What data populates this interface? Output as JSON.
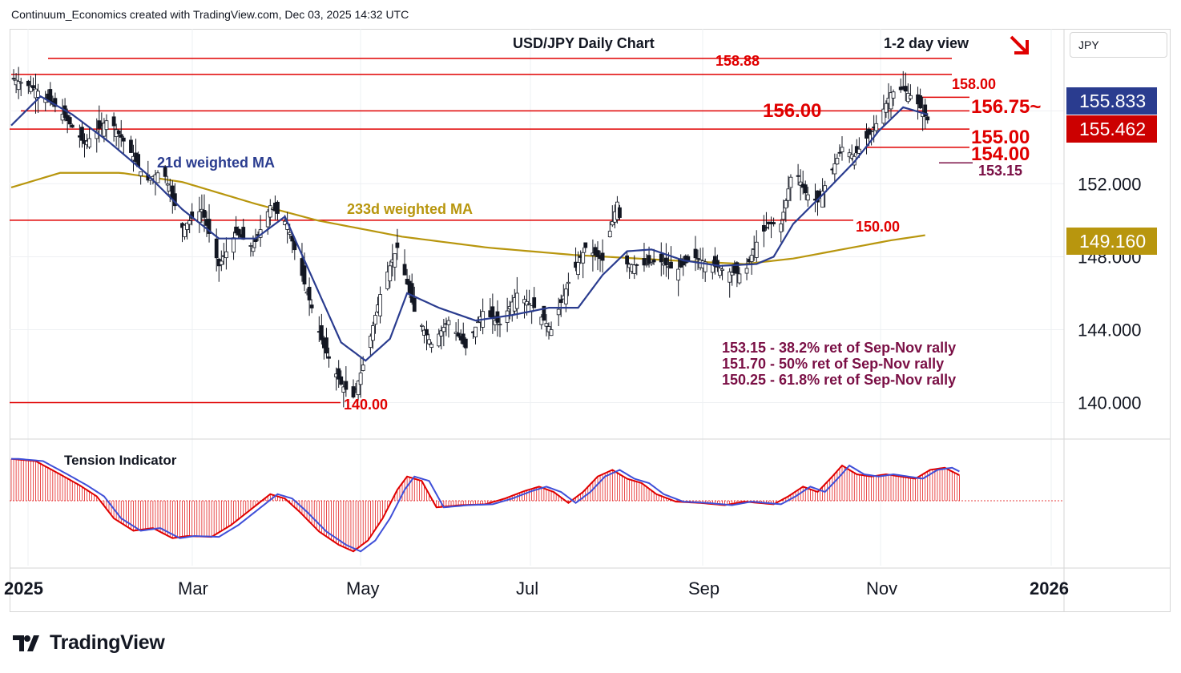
{
  "header": "Continuum_Economics created with TradingView.com, Dec 03, 2025 14:32 UTC",
  "title": "USD/JPY Daily Chart",
  "view_label": "1-2 day view",
  "currency": "JPY",
  "brand": "TradingView",
  "colors": {
    "red": "#e00000",
    "ma21": "#2a3c8f",
    "ma233": "#b8960e",
    "down_candle": "#131722",
    "maroon": "#7a0f45",
    "price_box1": "#2a3c8f",
    "price_box2": "#cc0000",
    "price_box3": "#b8960e"
  },
  "price_boxes": [
    {
      "value": "155.833",
      "color": "#2a3c8f"
    },
    {
      "value": "155.462",
      "color": "#cc0000"
    },
    {
      "value": "149.160",
      "color": "#b8960e"
    }
  ],
  "ma_labels": {
    "ma21": "21d weighted MA",
    "ma233": "233d weighted MA"
  },
  "level_labels": {
    "l15888": "158.88",
    "l15800": "158.00",
    "l15675": "156.75~",
    "l15600": "156.00",
    "l15500": "155.00",
    "l15400": "154.00",
    "l15315": "153.15",
    "l15000": "150.00",
    "l14000": "140.00"
  },
  "notes": [
    "153.15 - 38.2% ret of Sep-Nov rally",
    "151.70 - 50% ret of Sep-Nov rally",
    "150.25 - 61.8% ret of Sep-Nov rally"
  ],
  "indicator_label": "Tension Indicator",
  "chart_data": {
    "type": "candlestick",
    "title": "USD/JPY Daily Chart",
    "y_axis_ticks": [
      "140.000",
      "144.000",
      "148.000",
      "152.000"
    ],
    "x_axis_ticks": [
      "2025",
      "Mar",
      "May",
      "Jul",
      "Sep",
      "Nov",
      "2026"
    ],
    "y_range": [
      138.0,
      160.5
    ],
    "horizontal_levels": [
      158.88,
      158.0,
      156.75,
      156.0,
      155.0,
      154.0,
      153.15,
      150.0,
      140.0
    ],
    "retracements": [
      {
        "level": 153.15,
        "label": "38.2%"
      },
      {
        "level": 151.7,
        "label": "50%"
      },
      {
        "level": 150.25,
        "label": "61.8%"
      }
    ],
    "last_price": 155.462,
    "ma21_last": 155.833,
    "ma233_last": 149.16,
    "price_path": [
      [
        0,
        157.8
      ],
      [
        10,
        157.2
      ],
      [
        20,
        156.0
      ],
      [
        30,
        154.2
      ],
      [
        40,
        155.6
      ],
      [
        50,
        153.5
      ],
      [
        55,
        152.1
      ],
      [
        62,
        152.8
      ],
      [
        70,
        149.6
      ],
      [
        78,
        150.6
      ],
      [
        85,
        147.5
      ],
      [
        92,
        149.3
      ],
      [
        99,
        148.5
      ],
      [
        106,
        150.8
      ],
      [
        113,
        149.8
      ],
      [
        120,
        146.5
      ],
      [
        128,
        143.0
      ],
      [
        135,
        141.0
      ],
      [
        140,
        140.3
      ],
      [
        145,
        142.5
      ],
      [
        152,
        146.5
      ],
      [
        158,
        148.5
      ],
      [
        165,
        145.0
      ],
      [
        172,
        143.2
      ],
      [
        179,
        144.5
      ],
      [
        186,
        143.0
      ],
      [
        193,
        145.0
      ],
      [
        200,
        144.3
      ],
      [
        207,
        146.0
      ],
      [
        214,
        145.2
      ],
      [
        221,
        144.0
      ],
      [
        228,
        146.6
      ],
      [
        235,
        148.5
      ],
      [
        242,
        147.8
      ],
      [
        248,
        151.0
      ],
      [
        252,
        147.6
      ],
      [
        258,
        147.5
      ],
      [
        265,
        147.8
      ],
      [
        272,
        147.2
      ],
      [
        279,
        148.0
      ],
      [
        286,
        147.6
      ],
      [
        293,
        147.2
      ],
      [
        300,
        147.0
      ],
      [
        305,
        148.8
      ],
      [
        310,
        149.8
      ],
      [
        315,
        149.8
      ],
      [
        320,
        153.0
      ],
      [
        325,
        151.5
      ],
      [
        330,
        151.0
      ],
      [
        335,
        152.5
      ],
      [
        340,
        154.0
      ],
      [
        345,
        153.5
      ],
      [
        350,
        154.5
      ],
      [
        355,
        155.5
      ],
      [
        360,
        157.0
      ],
      [
        365,
        157.2
      ],
      [
        370,
        156.6
      ],
      [
        375,
        155.5
      ]
    ],
    "ma21_path": [
      [
        0,
        155.2
      ],
      [
        12,
        156.8
      ],
      [
        25,
        155.8
      ],
      [
        40,
        154.3
      ],
      [
        55,
        152.6
      ],
      [
        70,
        150.6
      ],
      [
        85,
        149.0
      ],
      [
        100,
        149.0
      ],
      [
        112,
        150.2
      ],
      [
        125,
        146.3
      ],
      [
        135,
        143.3
      ],
      [
        145,
        142.3
      ],
      [
        155,
        143.5
      ],
      [
        162,
        146.0
      ],
      [
        175,
        145.2
      ],
      [
        190,
        144.5
      ],
      [
        205,
        144.8
      ],
      [
        220,
        145.2
      ],
      [
        232,
        145.2
      ],
      [
        242,
        147.0
      ],
      [
        252,
        148.3
      ],
      [
        262,
        148.4
      ],
      [
        275,
        147.8
      ],
      [
        290,
        147.5
      ],
      [
        305,
        147.6
      ],
      [
        312,
        148.0
      ],
      [
        320,
        149.8
      ],
      [
        332,
        151.4
      ],
      [
        345,
        153.2
      ],
      [
        355,
        154.9
      ],
      [
        365,
        156.2
      ],
      [
        375,
        155.8
      ]
    ],
    "ma233_path": [
      [
        0,
        151.8
      ],
      [
        20,
        152.6
      ],
      [
        45,
        152.6
      ],
      [
        70,
        152.1
      ],
      [
        100,
        150.9
      ],
      [
        125,
        150.0
      ],
      [
        160,
        149.1
      ],
      [
        195,
        148.5
      ],
      [
        230,
        148.1
      ],
      [
        270,
        147.8
      ],
      [
        300,
        147.6
      ],
      [
        320,
        147.9
      ],
      [
        340,
        148.4
      ],
      [
        360,
        148.9
      ],
      [
        375,
        149.2
      ]
    ],
    "tension_path": [
      [
        0,
        0.95
      ],
      [
        10,
        0.9
      ],
      [
        20,
        0.6
      ],
      [
        28,
        0.35
      ],
      [
        35,
        0.1
      ],
      [
        42,
        -0.4
      ],
      [
        50,
        -0.68
      ],
      [
        58,
        -0.62
      ],
      [
        66,
        -0.85
      ],
      [
        72,
        -0.8
      ],
      [
        82,
        -0.82
      ],
      [
        90,
        -0.55
      ],
      [
        98,
        -0.2
      ],
      [
        106,
        0.15
      ],
      [
        112,
        0.05
      ],
      [
        118,
        -0.25
      ],
      [
        126,
        -0.7
      ],
      [
        134,
        -1.0
      ],
      [
        140,
        -1.15
      ],
      [
        146,
        -0.9
      ],
      [
        152,
        -0.4
      ],
      [
        158,
        0.25
      ],
      [
        162,
        0.55
      ],
      [
        168,
        0.45
      ],
      [
        174,
        -0.15
      ],
      [
        184,
        -0.1
      ],
      [
        194,
        -0.08
      ],
      [
        202,
        0.05
      ],
      [
        210,
        0.22
      ],
      [
        216,
        0.32
      ],
      [
        222,
        0.2
      ],
      [
        228,
        -0.05
      ],
      [
        234,
        0.2
      ],
      [
        240,
        0.55
      ],
      [
        246,
        0.7
      ],
      [
        252,
        0.5
      ],
      [
        258,
        0.4
      ],
      [
        264,
        0.15
      ],
      [
        272,
        -0.02
      ],
      [
        282,
        -0.05
      ],
      [
        292,
        -0.1
      ],
      [
        300,
        -0.02
      ],
      [
        306,
        -0.05
      ],
      [
        312,
        -0.08
      ],
      [
        318,
        0.1
      ],
      [
        324,
        0.32
      ],
      [
        330,
        0.2
      ],
      [
        336,
        0.55
      ],
      [
        340,
        0.8
      ],
      [
        346,
        0.6
      ],
      [
        352,
        0.55
      ],
      [
        358,
        0.6
      ],
      [
        364,
        0.55
      ],
      [
        370,
        0.5
      ],
      [
        376,
        0.7
      ],
      [
        382,
        0.75
      ],
      [
        388,
        0.58
      ]
    ]
  }
}
